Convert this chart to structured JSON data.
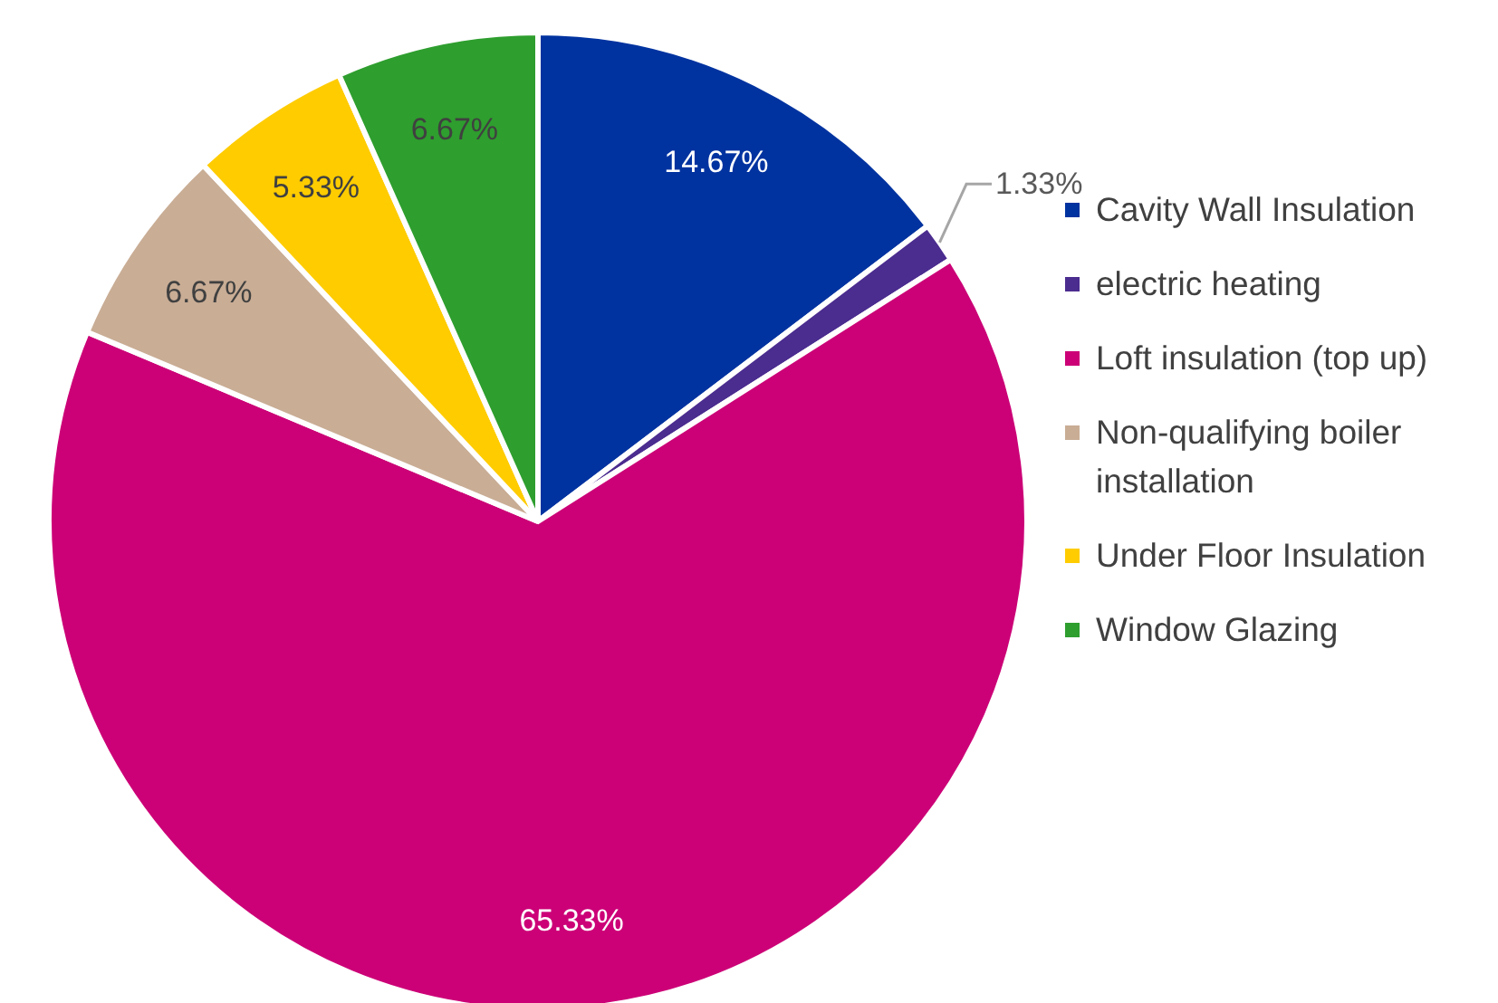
{
  "chart_data": {
    "type": "pie",
    "categories": [
      "Cavity Wall Insulation",
      "electric heating",
      "Loft insulation (top up)",
      "Non-qualifying boiler installation",
      "Under Floor Insulation",
      "Window Glazing"
    ],
    "values": [
      14.67,
      1.33,
      65.33,
      6.67,
      5.33,
      6.67
    ],
    "value_labels": [
      "14.67%",
      "1.33%",
      "65.33%",
      "6.67%",
      "5.33%",
      "6.67%"
    ],
    "colors": [
      "#0033a0",
      "#4b2c8f",
      "#cc0077",
      "#c9ad95",
      "#ffcc00",
      "#2e9e2e"
    ],
    "legend": "right"
  }
}
